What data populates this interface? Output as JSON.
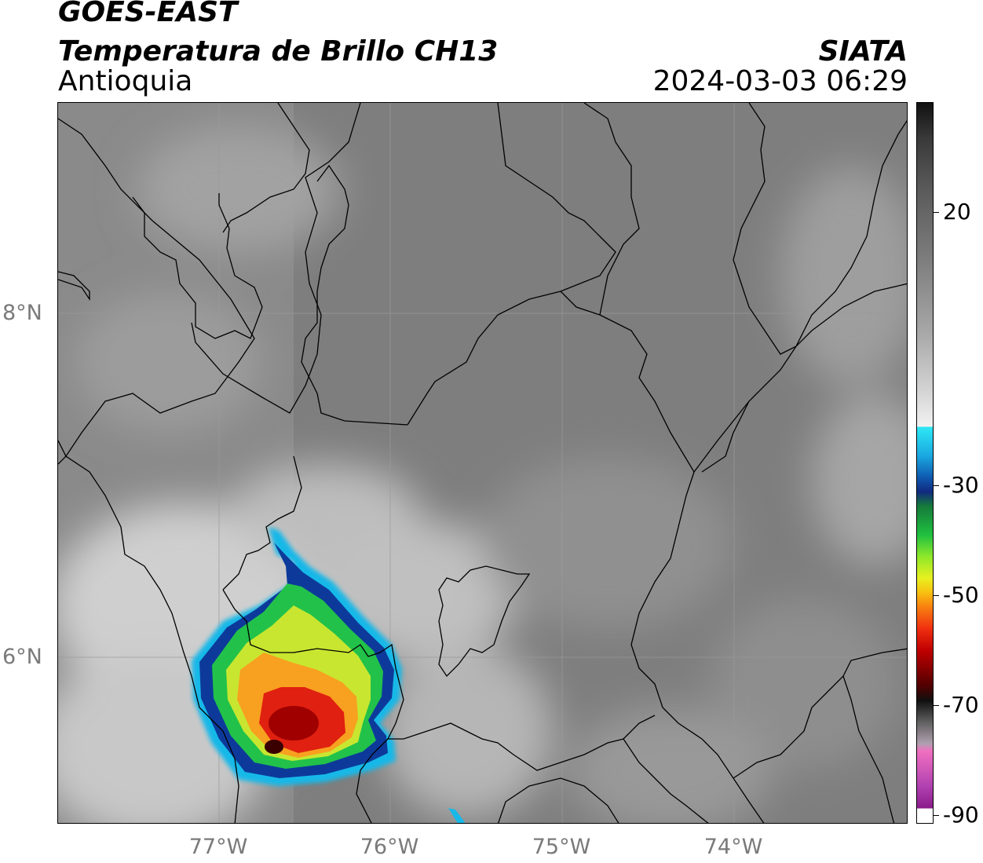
{
  "header": {
    "title": "GOES-EAST",
    "subtitle": "Temperatura de Brillo CH13",
    "region": "Antioquia",
    "organization": "SIATA",
    "timestamp": "2024-03-03 06:29"
  },
  "map": {
    "latitude_labels": [
      "8°N",
      "6°N"
    ],
    "longitude_labels": [
      "77°W",
      "76°W",
      "75°W",
      "74°W"
    ]
  },
  "colorbar": {
    "tick_labels": [
      "20",
      "-30",
      "-50",
      "-70",
      "-90"
    ],
    "colors": {
      "warm": "#111111",
      "neutral": "#f2f2f2",
      "cyan": "#2ee8f5",
      "blue": "#102a80",
      "green": "#20c040",
      "yellow": "#e8f020",
      "red": "#c00000",
      "magenta": "#f070c0"
    }
  },
  "storm_colors": {
    "outer": "#18b8e8",
    "blue": "#0d3a9a",
    "green": "#22c24a",
    "yellow": "#d8ec28",
    "orange": "#f8a020",
    "red": "#e02010",
    "core": "#5a0000"
  }
}
